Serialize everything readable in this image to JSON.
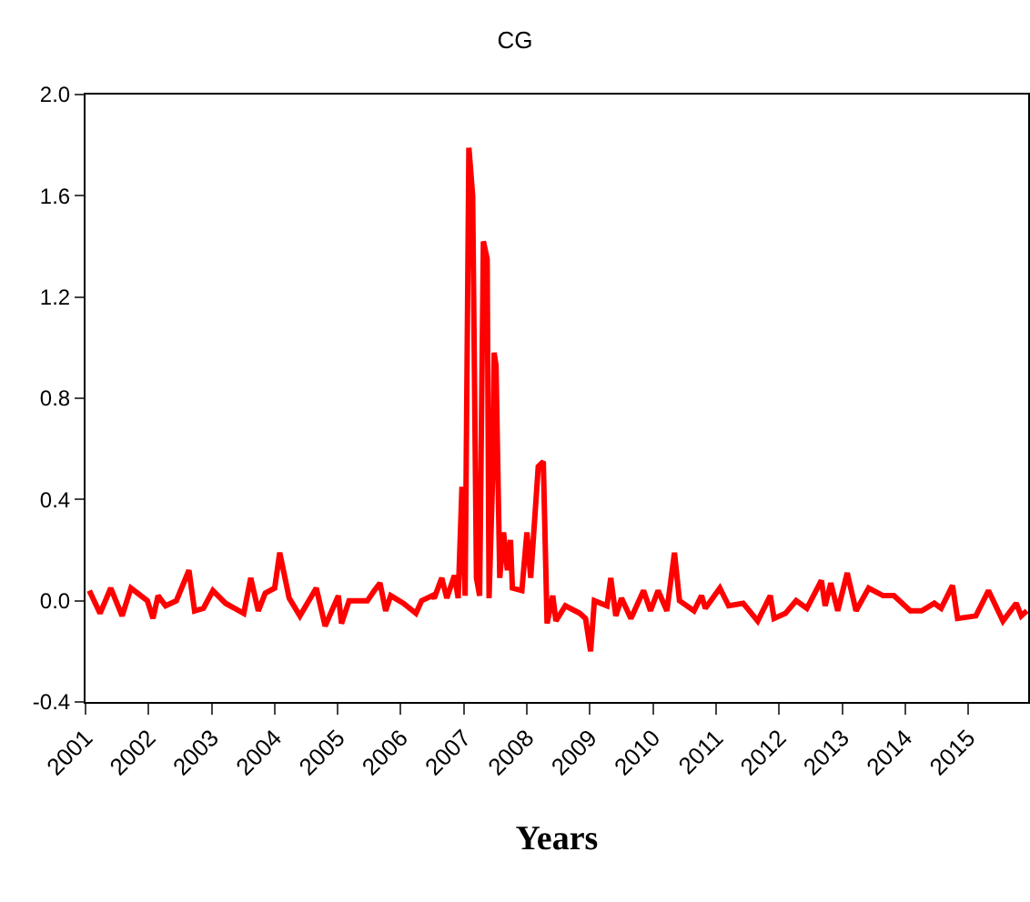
{
  "chart_data": {
    "type": "line",
    "title": "CG",
    "xlabel": "Years",
    "grid": false,
    "marker": "none",
    "line_style": "solid",
    "xlim": [
      2001.0,
      2015.95
    ],
    "xticks": [
      2001,
      2002,
      2003,
      2004,
      2005,
      2006,
      2007,
      2008,
      2009,
      2010,
      2011,
      2012,
      2013,
      2014,
      2015
    ],
    "ylim": [
      -0.4,
      2.0
    ],
    "yticks": [
      {
        "value": -0.4,
        "label": "-0.4"
      },
      {
        "value": 0,
        "label": "0.0"
      },
      {
        "value": 0.4,
        "label": "0.4"
      },
      {
        "value": 0.8,
        "label": "0.8"
      },
      {
        "value": 1.2,
        "label": "1.2"
      },
      {
        "value": 1.6,
        "label": "1.6"
      },
      {
        "value": 2.0,
        "label": "2.0"
      }
    ],
    "series": [
      {
        "color": "#ff0000",
        "x": [
          2001.06,
          2001.23,
          2001.4,
          2001.58,
          2001.72,
          2001.98,
          2002.07,
          2002.15,
          2002.27,
          2002.44,
          2002.64,
          2002.73,
          2002.87,
          2003.02,
          2003.22,
          2003.51,
          2003.62,
          2003.74,
          2003.85,
          2004.0,
          2004.08,
          2004.23,
          2004.4,
          2004.66,
          2004.8,
          2005.01,
          2005.06,
          2005.18,
          2005.47,
          2005.58,
          2005.67,
          2005.76,
          2005.84,
          2006.04,
          2006.24,
          2006.33,
          2006.5,
          2006.53,
          2006.65,
          2006.73,
          2006.85,
          2006.91,
          2006.97,
          2007.02,
          2007.08,
          2007.14,
          2007.2,
          2007.25,
          2007.31,
          2007.37,
          2007.4,
          2007.46,
          2007.48,
          2007.51,
          2007.57,
          2007.63,
          2007.69,
          2007.74,
          2007.77,
          2007.92,
          2008.0,
          2008.06,
          2008.18,
          2008.26,
          2008.32,
          2008.41,
          2008.46,
          2008.61,
          2008.84,
          2008.93,
          2009.01,
          2009.07,
          2009.27,
          2009.33,
          2009.41,
          2009.5,
          2009.65,
          2009.85,
          2009.96,
          2010.08,
          2010.22,
          2010.34,
          2010.42,
          2010.65,
          2010.77,
          2010.83,
          2011.06,
          2011.2,
          2011.43,
          2011.66,
          2011.86,
          2011.92,
          2012.1,
          2012.27,
          2012.44,
          2012.67,
          2012.73,
          2012.82,
          2012.93,
          2013.08,
          2013.22,
          2013.42,
          2013.65,
          2013.82,
          2014.08,
          2014.26,
          2014.46,
          2014.57,
          2014.75,
          2014.83,
          2015.12,
          2015.32,
          2015.55,
          2015.76,
          2015.84,
          2015.93
        ],
        "values": [
          0.04,
          -0.05,
          0.05,
          -0.06,
          0.05,
          0.0,
          -0.07,
          0.02,
          -0.02,
          0.0,
          0.12,
          -0.04,
          -0.03,
          0.04,
          -0.01,
          -0.05,
          0.09,
          -0.04,
          0.03,
          0.05,
          0.19,
          0.01,
          -0.06,
          0.05,
          -0.1,
          0.02,
          -0.09,
          0.0,
          0.0,
          0.04,
          0.07,
          -0.04,
          0.02,
          -0.01,
          -0.05,
          0.0,
          0.02,
          0.01,
          0.09,
          0.01,
          0.1,
          0.01,
          0.45,
          0.02,
          1.79,
          1.6,
          0.09,
          0.02,
          1.42,
          1.35,
          0.01,
          0.52,
          0.98,
          0.93,
          0.09,
          0.27,
          0.12,
          0.24,
          0.05,
          0.04,
          0.27,
          0.09,
          0.53,
          0.55,
          -0.09,
          0.02,
          -0.08,
          -0.02,
          -0.05,
          -0.07,
          -0.2,
          0.0,
          -0.02,
          0.09,
          -0.06,
          0.01,
          -0.07,
          0.04,
          -0.04,
          0.04,
          -0.04,
          0.19,
          0.0,
          -0.04,
          0.02,
          -0.03,
          0.05,
          -0.02,
          -0.01,
          -0.08,
          0.02,
          -0.07,
          -0.05,
          0.0,
          -0.03,
          0.08,
          -0.02,
          0.07,
          -0.04,
          0.11,
          -0.04,
          0.05,
          0.02,
          0.02,
          -0.04,
          -0.04,
          -0.01,
          -0.03,
          0.06,
          -0.07,
          -0.06,
          0.04,
          -0.08,
          -0.01,
          -0.06,
          -0.04
        ]
      }
    ]
  }
}
